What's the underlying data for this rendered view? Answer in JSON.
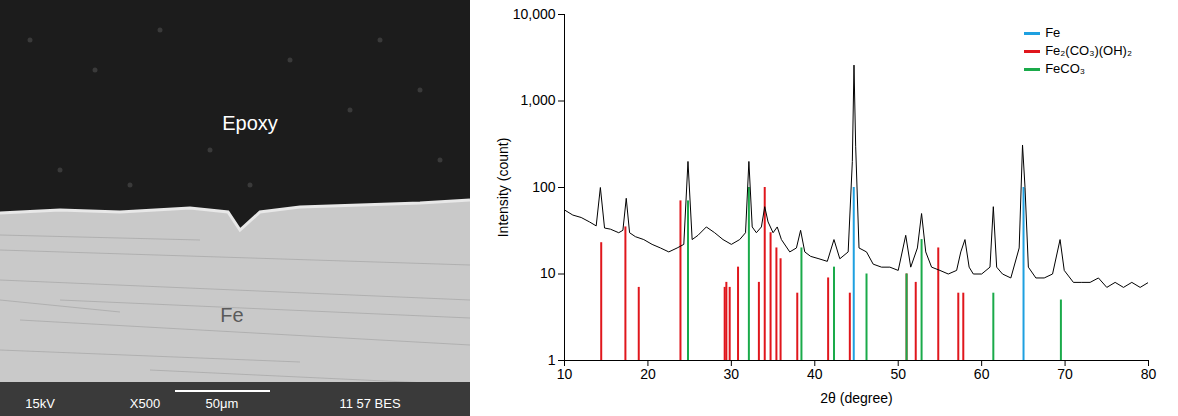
{
  "image_panel": {
    "regions": [
      "Epoxy",
      "Fe"
    ],
    "info_bar": [
      "15kV",
      "X500",
      "50μm",
      "11 57 BES"
    ]
  },
  "chart_data": {
    "type": "line",
    "xlabel": "2θ (degree)",
    "ylabel": "Intensity (count)",
    "xlim": [
      10,
      80
    ],
    "xticks": [
      10,
      20,
      30,
      40,
      50,
      60,
      70,
      80
    ],
    "ylim": [
      1,
      10000
    ],
    "yticks": [
      1,
      10,
      100,
      {
        "value": 1000,
        "label": "1,000"
      },
      {
        "value": 10000,
        "label": "10,000"
      }
    ],
    "log": "y",
    "grid": false,
    "legend": "top-right",
    "series": [
      {
        "name": "Fe",
        "type": "stick",
        "color": "#1ea0e0",
        "x": [
          44.67,
          65.02
        ],
        "values": [
          100,
          100
        ]
      },
      {
        "name": "Fe₂(CO₃)(OH)₂",
        "type": "stick",
        "color": "#e0161c",
        "x": [
          14.4,
          17.3,
          18.9,
          23.9,
          29.2,
          29.4,
          29.8,
          30.8,
          33.3,
          34.0,
          34.7,
          35.4,
          35.9,
          37.9,
          41.6,
          44.2,
          51.0,
          52.1,
          54.8,
          57.2,
          57.8
        ],
        "values": [
          23,
          35,
          7,
          70,
          7,
          8,
          7,
          12,
          8,
          100,
          30,
          20,
          15,
          6,
          9,
          6,
          10,
          8,
          20,
          6,
          6
        ]
      },
      {
        "name": "FeCO₃",
        "type": "stick",
        "color": "#1aaa4a",
        "x": [
          24.8,
          32.1,
          38.4,
          42.3,
          46.2,
          51.0,
          52.8,
          61.4,
          69.5
        ],
        "values": [
          70,
          100,
          20,
          12,
          10,
          10,
          25,
          6,
          5
        ]
      },
      {
        "type": "line",
        "color": "#000000",
        "x": [
          10,
          11,
          12,
          13,
          13.8,
          14.3,
          14.8,
          15.5,
          16.5,
          17.0,
          17.4,
          17.8,
          18.5,
          19.5,
          20.5,
          21.5,
          22.5,
          23.5,
          24.3,
          24.8,
          25.3,
          26,
          27,
          28,
          29,
          30,
          31,
          31.7,
          32.1,
          32.5,
          33,
          33.6,
          34.0,
          34.4,
          35,
          35.5,
          36,
          37,
          37.8,
          38.3,
          38.8,
          39.5,
          40.5,
          41.5,
          42.3,
          43,
          44,
          44.5,
          44.7,
          44.9,
          45.3,
          46.2,
          47,
          48,
          49,
          50,
          50.9,
          51.5,
          52.3,
          52.8,
          53.3,
          54,
          55,
          56,
          57,
          57.5,
          58,
          58.5,
          59,
          60,
          61,
          61.4,
          61.8,
          62.5,
          63.5,
          64.5,
          64.9,
          65.2,
          65.6,
          66.5,
          67.5,
          68.5,
          69.4,
          69.9,
          71,
          72,
          73,
          74,
          75,
          76,
          77,
          78,
          79,
          80
        ],
        "values": [
          55,
          48,
          45,
          40,
          36,
          100,
          34,
          33,
          30,
          32,
          75,
          30,
          27,
          25,
          22,
          20,
          18,
          20,
          22,
          200,
          25,
          28,
          35,
          30,
          25,
          22,
          25,
          30,
          200,
          35,
          30,
          35,
          60,
          40,
          30,
          35,
          25,
          18,
          20,
          32,
          18,
          16,
          15,
          14,
          25,
          15,
          18,
          200,
          2600,
          300,
          20,
          18,
          13,
          12,
          12,
          11,
          28,
          12,
          20,
          50,
          18,
          12,
          11,
          10,
          11,
          18,
          25,
          12,
          10,
          10,
          12,
          60,
          12,
          10,
          9,
          20,
          310,
          100,
          12,
          9,
          9,
          10,
          25,
          11,
          8,
          8,
          8,
          9,
          7,
          8,
          7,
          8,
          7,
          8
        ]
      }
    ]
  }
}
